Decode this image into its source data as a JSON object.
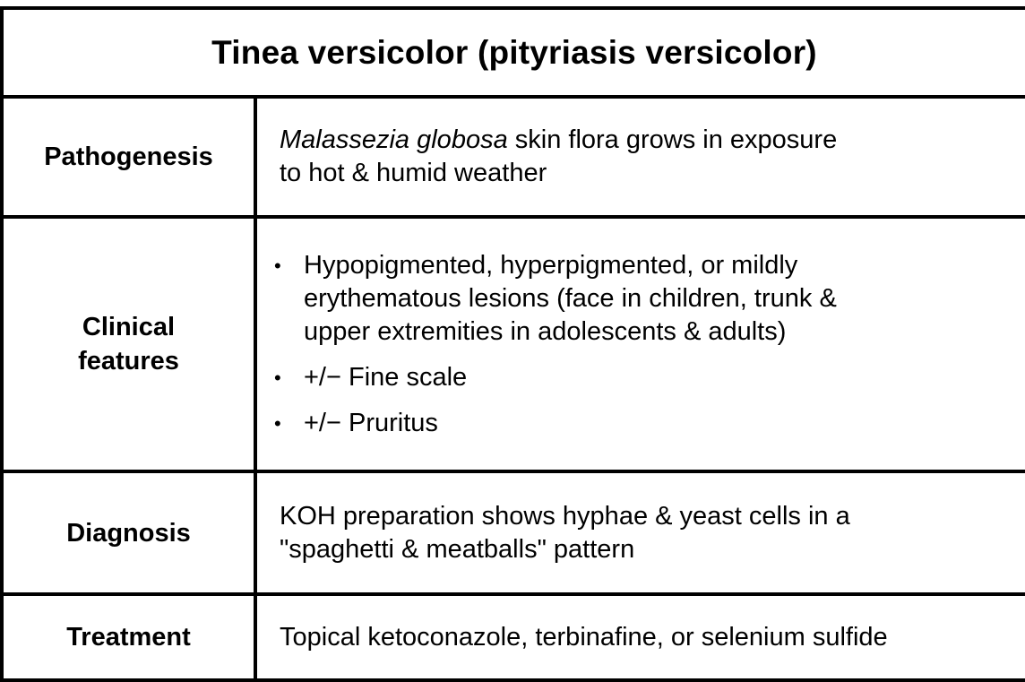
{
  "table": {
    "title": "Tinea versicolor (pityriasis versicolor)",
    "rows": [
      {
        "label": "Pathogenesis",
        "content_italic": "Malassezia globosa",
        "content_line1_rest": " skin flora grows in exposure",
        "content_line2": "to hot & humid weather"
      },
      {
        "label_line1": "Clinical",
        "label_line2": "features",
        "bullets": [
          {
            "line1": "Hypopigmented, hyperpigmented, or mildly",
            "line2": "erythematous lesions (face in children, trunk &",
            "line3": "upper extremities in adolescents & adults)"
          },
          {
            "line1": "+/− Fine scale"
          },
          {
            "line1": "+/− Pruritus"
          }
        ],
        "bullet_symbol": "•"
      },
      {
        "label": "Diagnosis",
        "content_line1": "KOH preparation shows hyphae & yeast cells in a",
        "content_line2": "\"spaghetti & meatballs\" pattern"
      },
      {
        "label": "Treatment",
        "content_line1": "Topical ketoconazole, terbinafine, or selenium sulfide"
      }
    ]
  }
}
